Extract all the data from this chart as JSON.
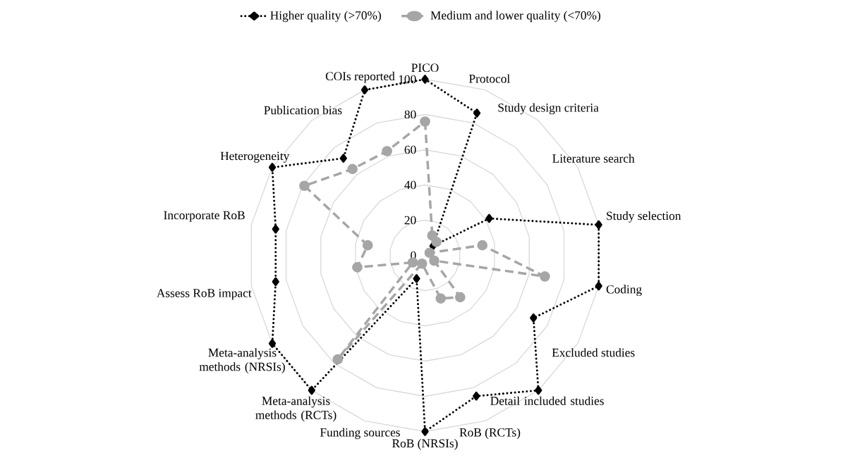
{
  "chart_data": {
    "type": "radar",
    "categories": [
      "PICO",
      "Protocol",
      "Study design criteria",
      "Literature search",
      "Study selection",
      "Coding",
      "Excluded studies",
      "Detail included studies",
      "RoB (RCTs)",
      "RoB (NRSIs)",
      "Funding sources",
      "Meta-analysis methods (RCTs)",
      "Meta-analysis methods (NRSIs)",
      "Assess RoB impact",
      "Incorporate RoB",
      "Heterogeneity",
      "Publication bias",
      "COIs reported"
    ],
    "series": [
      {
        "name": "Higher quality (>70%)",
        "color": "#000000",
        "marker": "diamond",
        "line_style": "dotted",
        "values": [
          100,
          86,
          7,
          42,
          100,
          100,
          71,
          100,
          85,
          100,
          14,
          100,
          100,
          86,
          86,
          100,
          72,
          100
        ]
      },
      {
        "name": "Medium and lower quality (<70%)",
        "color": "#a6a6a6",
        "marker": "circle",
        "line_style": "dashed",
        "values": [
          76,
          12,
          10,
          3,
          33,
          69,
          6,
          31,
          26,
          null,
          5,
          77,
          8,
          39,
          33,
          79,
          64,
          63
        ]
      }
    ],
    "ylim": [
      0,
      100
    ],
    "yticks": [
      0,
      20,
      40,
      60,
      80,
      100
    ],
    "grid": true,
    "legend": "top"
  }
}
